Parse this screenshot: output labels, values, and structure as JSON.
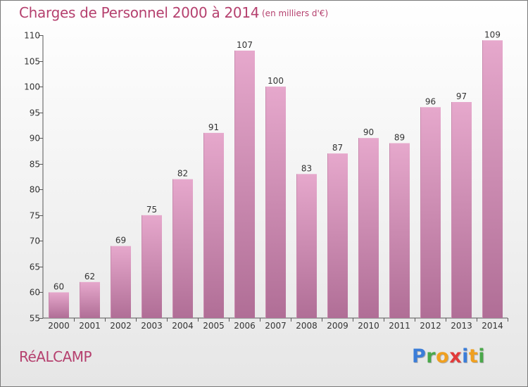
{
  "header": {
    "title": "Charges de Personnel 2000 à 2014",
    "subtitle": "(en milliers d'€)"
  },
  "footer": {
    "commune": "RéALCAMP",
    "logo": [
      "P",
      "r",
      "o",
      "x",
      "i",
      "t",
      "i"
    ]
  },
  "colors": {
    "title": "#b5406e",
    "bar_top": "#e6a8cc",
    "bar_bottom": "#b06e96",
    "axis": "#555555"
  },
  "chart_data": {
    "type": "bar",
    "title": "Charges de Personnel 2000 à 2014",
    "subtitle": "(en milliers d'€)",
    "xlabel": "",
    "ylabel": "",
    "categories": [
      "2000",
      "2001",
      "2002",
      "2003",
      "2004",
      "2005",
      "2006",
      "2007",
      "2008",
      "2009",
      "2010",
      "2011",
      "2012",
      "2013",
      "2014"
    ],
    "values": [
      60,
      62,
      69,
      75,
      82,
      91,
      107,
      100,
      83,
      87,
      90,
      89,
      96,
      97,
      109
    ],
    "ylim": [
      55,
      110
    ],
    "yticks": [
      55,
      60,
      65,
      70,
      75,
      80,
      85,
      90,
      95,
      100,
      105,
      110
    ],
    "grid": false,
    "legend": "none",
    "data_labels": true
  }
}
